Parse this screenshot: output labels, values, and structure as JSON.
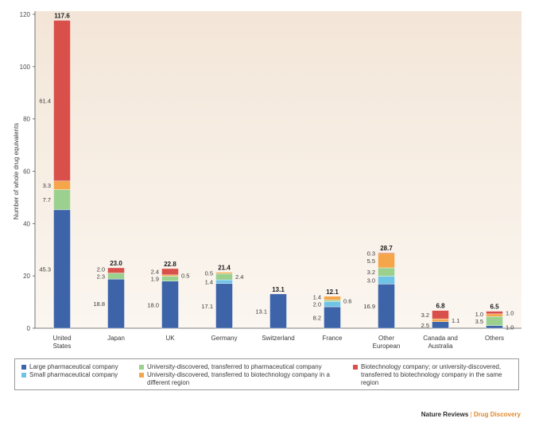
{
  "chart_data": {
    "type": "bar",
    "stacked": true,
    "ylabel": "Number of whole drug equivalents",
    "xlabel": "",
    "ylim": [
      0,
      120
    ],
    "yticks": [
      0,
      20,
      40,
      60,
      80,
      100,
      120
    ],
    "grid": false,
    "categories": [
      "United States",
      "Japan",
      "UK",
      "Germany",
      "Switzerland",
      "France",
      "Other European",
      "Canada and Australia",
      "Others"
    ],
    "category_lines": [
      [
        "United",
        "States"
      ],
      [
        "Japan"
      ],
      [
        "UK"
      ],
      [
        "Germany"
      ],
      [
        "Switzerland"
      ],
      [
        "France"
      ],
      [
        "Other",
        "European"
      ],
      [
        "Canada and",
        "Australia"
      ],
      [
        "Others"
      ]
    ],
    "totals": [
      "117.6",
      "23.0",
      "22.8",
      "21.4",
      "13.1",
      "12.1",
      "28.7",
      "6.8",
      "6.5"
    ],
    "series": [
      {
        "name": "Large pharmaceutical company",
        "color": "#3d64a8",
        "values": [
          45.3,
          18.8,
          18.0,
          17.1,
          13.1,
          8.2,
          16.9,
          2.5,
          1.0
        ],
        "labels": [
          "45.3",
          "18.8",
          "18.0",
          "17.1",
          "13.1",
          "8.2",
          "16.9",
          "2.5",
          "1.0"
        ]
      },
      {
        "name": "Small pharmaceutical company",
        "color": "#6fc3e6",
        "values": [
          0,
          0,
          0,
          1.4,
          0,
          2.0,
          3.0,
          0,
          0
        ],
        "labels": [
          "",
          "",
          "",
          "1.4",
          "",
          "2.0",
          "3.0",
          "",
          ""
        ]
      },
      {
        "name": "University-discovered, transferred to pharmaceutical company",
        "color": "#9bd08f",
        "values": [
          7.7,
          2.3,
          1.9,
          2.4,
          0,
          0.6,
          3.2,
          0,
          3.5
        ],
        "labels": [
          "7.7",
          "2.3",
          "1.9",
          "2.4",
          "",
          "0.6",
          "3.2",
          "",
          "3.5"
        ]
      },
      {
        "name": "University-discovered, transferred to biotechnology company in a different region",
        "color": "#f5a64a",
        "values": [
          3.3,
          0,
          0.5,
          0.5,
          0,
          1.4,
          5.5,
          1.1,
          1.0
        ],
        "labels": [
          "3.3",
          "",
          "0.5",
          "0.5",
          "",
          "1.4",
          "5.5",
          "1.1",
          "1.0"
        ]
      },
      {
        "name": "Biotechnology company; or university-discovered, transferred to biotechnology company in the same region",
        "color": "#d9504a",
        "values": [
          61.4,
          2.0,
          2.4,
          0,
          0,
          0,
          0.3,
          3.2,
          1.0
        ],
        "labels": [
          "61.4",
          "2.0",
          "2.4",
          "",
          "",
          "",
          "0.3",
          "3.2",
          "1.0"
        ]
      }
    ]
  },
  "legend": {
    "items": [
      {
        "text": "Large pharmaceutical company",
        "color": "#3d64a8"
      },
      {
        "text": "Small pharmaceutical company",
        "color": "#6fc3e6"
      },
      {
        "text": "University-discovered, transferred to pharmaceutical company",
        "color": "#9bd08f"
      },
      {
        "text": "University-discovered, transferred to biotechnology company in a different region",
        "color": "#f5a64a"
      },
      {
        "text": "Biotechnology company; or university-discovered, transferred to biotechnology company in the same region",
        "color": "#d9504a"
      }
    ]
  },
  "credit": {
    "journal": "Nature Reviews",
    "separator": "|",
    "section": "Drug Discovery"
  }
}
